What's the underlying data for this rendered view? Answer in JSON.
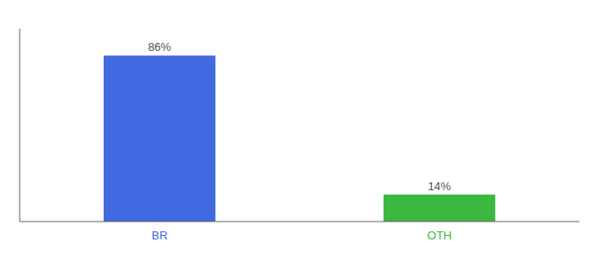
{
  "chart_data": {
    "type": "bar",
    "categories": [
      "BR",
      "OTH"
    ],
    "values": [
      86,
      14
    ],
    "value_labels": [
      "86%",
      "14%"
    ],
    "colors": [
      "#4169E1",
      "#3CB840"
    ],
    "ylim": [
      0,
      100
    ],
    "data_labels": true,
    "tick_labels": "x",
    "grid": false
  }
}
